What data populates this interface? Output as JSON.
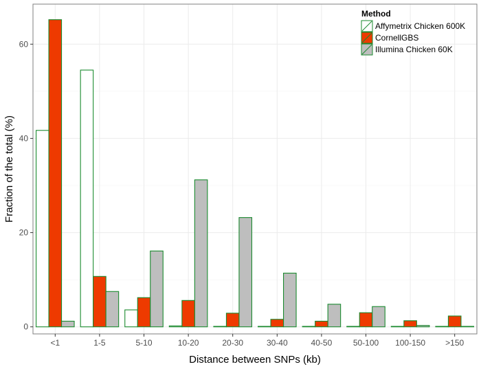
{
  "chart_data": {
    "type": "bar",
    "xlabel": "Distance between SNPs (kb)",
    "ylabel": "Fraction of the total (%)",
    "ylim": [
      -1.5,
      68.5
    ],
    "yticks": [
      0,
      20,
      40,
      60
    ],
    "grid": true,
    "legend_placement": "top-right",
    "legend_title": "Method",
    "categories": [
      "<1",
      "1-5",
      "5-10",
      "10-20",
      "20-30",
      "30-40",
      "40-50",
      "50-100",
      "100-150",
      ">150"
    ],
    "series": [
      {
        "name": "Affymetrix Chicken 600K",
        "fill": "#ffffff",
        "values": [
          41.7,
          54.5,
          3.6,
          0.2,
          0.1,
          0.1,
          0.1,
          0.1,
          0.1,
          0.1
        ]
      },
      {
        "name": "CornellGBS",
        "fill": "#ee3a00",
        "values": [
          65.2,
          10.7,
          6.2,
          5.6,
          2.9,
          1.6,
          1.2,
          3.0,
          1.3,
          2.3
        ]
      },
      {
        "name": "Illumina Chicken 60K",
        "fill": "#bebebe",
        "values": [
          1.2,
          7.5,
          16.1,
          31.2,
          23.2,
          11.4,
          4.8,
          4.3,
          0.3,
          0.1
        ]
      }
    ],
    "bar_stroke": "#1a8a2e",
    "panel_background": "#ffffff",
    "grid_color": "#ebebeb"
  }
}
